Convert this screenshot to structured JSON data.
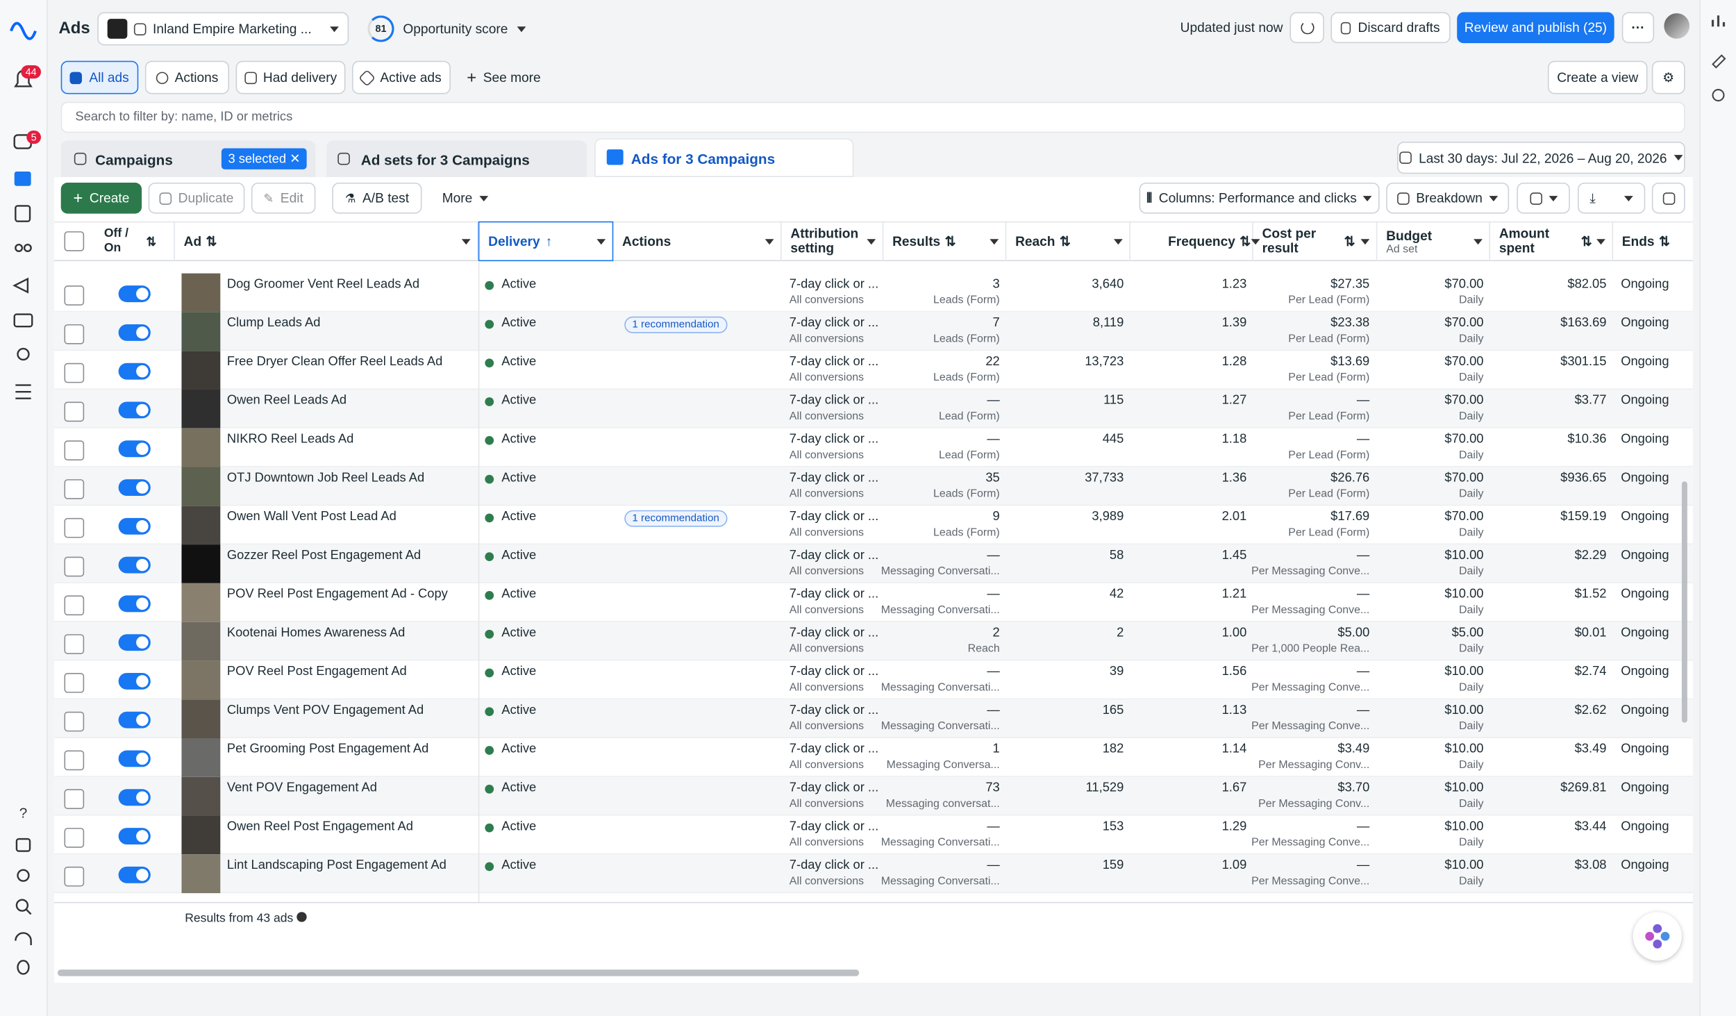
{
  "header": {
    "app": "Ads",
    "account": "Inland Empire Marketing ...",
    "score": "81",
    "score_label": "Opportunity score",
    "updated": "Updated just now",
    "discard": "Discard drafts",
    "publish": "Review and publish (25)"
  },
  "badges": {
    "notifications": "44",
    "messages": "5"
  },
  "views": [
    "All ads",
    "Actions",
    "Had delivery",
    "Active ads",
    "See more"
  ],
  "create_view": "Create a view",
  "search_placeholder": "Search to filter by: name, ID or metrics",
  "tabs": {
    "campaigns": "Campaigns",
    "selected": "3 selected",
    "adsets": "Ad sets for 3 Campaigns",
    "ads": "Ads for 3 Campaigns"
  },
  "date_range": "Last 30 days: Jul 22, 2026 – Aug 20, 2026",
  "toolbar": {
    "create": "Create",
    "duplicate": "Duplicate",
    "edit": "Edit",
    "ab_test": "A/B test",
    "more": "More",
    "columns": "Columns: Performance and clicks",
    "breakdown": "Breakdown"
  },
  "table": {
    "columns": [
      "Off / On",
      "Ad",
      "Delivery",
      "Actions",
      "Attribution setting",
      "Results",
      "Reach",
      "Frequency",
      "Cost per result",
      "Budget",
      "Amount spent",
      "Ends"
    ],
    "budget_sub": "Ad set",
    "rows": [
      {
        "ad": "Dog Groomer Vent Reel Leads Ad",
        "delivery": "Active",
        "attribution": "7-day click or ...",
        "attribution_sub": "All conversions",
        "results": "3",
        "results_sub": "Leads (Form)",
        "reach": "3,640",
        "frequency": "1.23",
        "cost": "$27.35",
        "cost_sub": "Per Lead (Form)",
        "budget": "$70.00",
        "budget_sub": "Daily",
        "spent": "$82.05",
        "ends": "Ongoing"
      },
      {
        "ad": "Clump Leads Ad",
        "delivery": "Active",
        "actions": "1 recommendation",
        "attribution": "7-day click or ...",
        "attribution_sub": "All conversions",
        "results": "7",
        "results_sub": "Leads (Form)",
        "reach": "8,119",
        "frequency": "1.39",
        "cost": "$23.38",
        "cost_sub": "Per Lead (Form)",
        "budget": "$70.00",
        "budget_sub": "Daily",
        "spent": "$163.69",
        "ends": "Ongoing"
      },
      {
        "ad": "Free Dryer Clean Offer Reel Leads Ad",
        "delivery": "Active",
        "attribution": "7-day click or ...",
        "attribution_sub": "All conversions",
        "results": "22",
        "results_sub": "Leads (Form)",
        "reach": "13,723",
        "frequency": "1.28",
        "cost": "$13.69",
        "cost_sub": "Per Lead (Form)",
        "budget": "$70.00",
        "budget_sub": "Daily",
        "spent": "$301.15",
        "ends": "Ongoing"
      },
      {
        "ad": "Owen Reel Leads Ad",
        "delivery": "Active",
        "attribution": "7-day click or ...",
        "attribution_sub": "All conversions",
        "results": "—",
        "results_sub": "Lead (Form)",
        "reach": "115",
        "frequency": "1.27",
        "cost": "—",
        "cost_sub": "Per Lead (Form)",
        "budget": "$70.00",
        "budget_sub": "Daily",
        "spent": "$3.77",
        "ends": "Ongoing"
      },
      {
        "ad": "NIKRO Reel Leads Ad",
        "delivery": "Active",
        "attribution": "7-day click or ...",
        "attribution_sub": "All conversions",
        "results": "—",
        "results_sub": "Lead (Form)",
        "reach": "445",
        "frequency": "1.18",
        "cost": "—",
        "cost_sub": "Per Lead (Form)",
        "budget": "$70.00",
        "budget_sub": "Daily",
        "spent": "$10.36",
        "ends": "Ongoing"
      },
      {
        "ad": "OTJ Downtown Job Reel Leads Ad",
        "delivery": "Active",
        "attribution": "7-day click or ...",
        "attribution_sub": "All conversions",
        "results": "35",
        "results_sub": "Leads (Form)",
        "reach": "37,733",
        "frequency": "1.36",
        "cost": "$26.76",
        "cost_sub": "Per Lead (Form)",
        "budget": "$70.00",
        "budget_sub": "Daily",
        "spent": "$936.65",
        "ends": "Ongoing"
      },
      {
        "ad": "Owen Wall Vent Post Lead Ad",
        "delivery": "Active",
        "actions": "1 recommendation",
        "attribution": "7-day click or ...",
        "attribution_sub": "All conversions",
        "results": "9",
        "results_sub": "Leads (Form)",
        "reach": "3,989",
        "frequency": "2.01",
        "cost": "$17.69",
        "cost_sub": "Per Lead (Form)",
        "budget": "$70.00",
        "budget_sub": "Daily",
        "spent": "$159.19",
        "ends": "Ongoing"
      },
      {
        "ad": "Gozzer Reel Post Engagement Ad",
        "delivery": "Active",
        "attribution": "7-day click or ...",
        "attribution_sub": "All conversions",
        "results": "—",
        "results_sub": "Messaging Conversati...",
        "reach": "58",
        "frequency": "1.45",
        "cost": "—",
        "cost_sub": "Per Messaging Conve...",
        "budget": "$10.00",
        "budget_sub": "Daily",
        "spent": "$2.29",
        "ends": "Ongoing"
      },
      {
        "ad": "POV Reel Post Engagement Ad - Copy",
        "delivery": "Active",
        "attribution": "7-day click or ...",
        "attribution_sub": "All conversions",
        "results": "—",
        "results_sub": "Messaging Conversati...",
        "reach": "42",
        "frequency": "1.21",
        "cost": "—",
        "cost_sub": "Per Messaging Conve...",
        "budget": "$10.00",
        "budget_sub": "Daily",
        "spent": "$1.52",
        "ends": "Ongoing"
      },
      {
        "ad": "Kootenai Homes Awareness Ad",
        "delivery": "Active",
        "attribution": "7-day click or ...",
        "attribution_sub": "All conversions",
        "results": "2",
        "results_sub": "Reach",
        "reach": "2",
        "frequency": "1.00",
        "cost": "$5.00",
        "cost_sub": "Per 1,000 People Rea...",
        "budget": "$5.00",
        "budget_sub": "Daily",
        "spent": "$0.01",
        "ends": "Ongoing"
      },
      {
        "ad": "POV Reel Post Engagement Ad",
        "delivery": "Active",
        "attribution": "7-day click or ...",
        "attribution_sub": "All conversions",
        "results": "—",
        "results_sub": "Messaging Conversati...",
        "reach": "39",
        "frequency": "1.56",
        "cost": "—",
        "cost_sub": "Per Messaging Conve...",
        "budget": "$10.00",
        "budget_sub": "Daily",
        "spent": "$2.74",
        "ends": "Ongoing"
      },
      {
        "ad": "Clumps Vent POV Engagement Ad",
        "delivery": "Active",
        "attribution": "7-day click or ...",
        "attribution_sub": "All conversions",
        "results": "—",
        "results_sub": "Messaging Conversati...",
        "reach": "165",
        "frequency": "1.13",
        "cost": "—",
        "cost_sub": "Per Messaging Conve...",
        "budget": "$10.00",
        "budget_sub": "Daily",
        "spent": "$2.62",
        "ends": "Ongoing"
      },
      {
        "ad": "Pet Grooming Post Engagement Ad",
        "delivery": "Active",
        "attribution": "7-day click or ...",
        "attribution_sub": "All conversions",
        "results": "1",
        "results_sub": "Messaging Conversa...",
        "reach": "182",
        "frequency": "1.14",
        "cost": "$3.49",
        "cost_sub": "Per Messaging Conv...",
        "budget": "$10.00",
        "budget_sub": "Daily",
        "spent": "$3.49",
        "ends": "Ongoing"
      },
      {
        "ad": "Vent POV Engagement Ad",
        "delivery": "Active",
        "attribution": "7-day click or ...",
        "attribution_sub": "All conversions",
        "results": "73",
        "results_sub": "Messaging conversat...",
        "reach": "11,529",
        "frequency": "1.67",
        "cost": "$3.70",
        "cost_sub": "Per Messaging Conv...",
        "budget": "$10.00",
        "budget_sub": "Daily",
        "spent": "$269.81",
        "ends": "Ongoing"
      },
      {
        "ad": "Owen Reel Post Engagement Ad",
        "delivery": "Active",
        "attribution": "7-day click or ...",
        "attribution_sub": "All conversions",
        "results": "—",
        "results_sub": "Messaging Conversati...",
        "reach": "153",
        "frequency": "1.29",
        "cost": "—",
        "cost_sub": "Per Messaging Conve...",
        "budget": "$10.00",
        "budget_sub": "Daily",
        "spent": "$3.44",
        "ends": "Ongoing"
      },
      {
        "ad": "Lint Landscaping Post Engagement Ad",
        "delivery": "Active",
        "attribution": "7-day click or ...",
        "attribution_sub": "All conversions",
        "results": "—",
        "results_sub": "Messaging Conversati...",
        "reach": "159",
        "frequency": "1.09",
        "cost": "—",
        "cost_sub": "Per Messaging Conve...",
        "budget": "$10.00",
        "budget_sub": "Daily",
        "spent": "$3.08",
        "ends": "Ongoing"
      }
    ]
  },
  "footer": "Results from 43 ads"
}
